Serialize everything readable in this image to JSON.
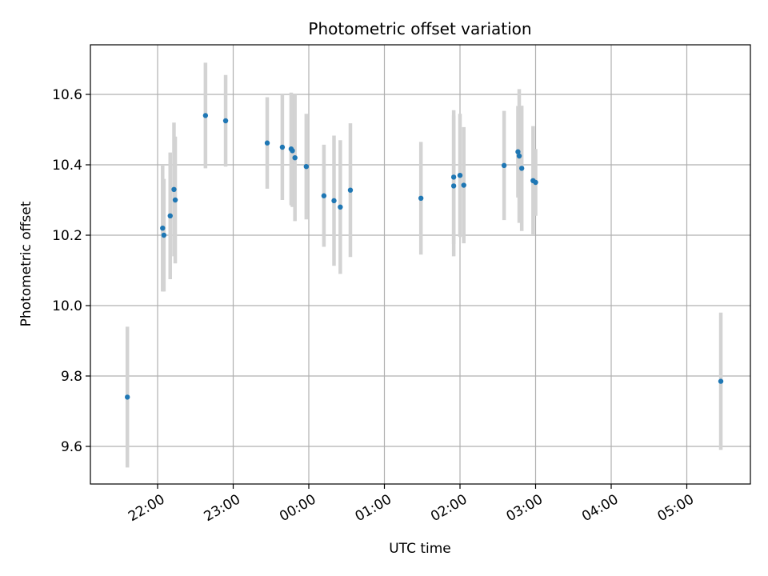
{
  "chart_data": {
    "type": "scatter",
    "title": "Photometric offset variation",
    "xlabel": "UTC time",
    "ylabel": "Photometric offset",
    "x_ticks": [
      "22:00",
      "23:00",
      "00:00",
      "01:00",
      "02:00",
      "03:00",
      "04:00",
      "05:00"
    ],
    "y_ticks": [
      "9.6",
      "9.8",
      "10.0",
      "10.2",
      "10.4",
      "10.6"
    ],
    "grid": true,
    "colors": {
      "point": "#1f77b4",
      "errorbar": "#d3d3d3",
      "grid": "#b0b0b0"
    },
    "points": [
      {
        "time": "21:36",
        "y": 9.74,
        "err": 0.2
      },
      {
        "time": "22:04",
        "y": 10.22,
        "err": 0.18
      },
      {
        "time": "22:05",
        "y": 10.2,
        "err": 0.16
      },
      {
        "time": "22:10",
        "y": 10.255,
        "err": 0.18
      },
      {
        "time": "22:13",
        "y": 10.33,
        "err": 0.19
      },
      {
        "time": "22:14",
        "y": 10.3,
        "err": 0.18
      },
      {
        "time": "22:38",
        "y": 10.54,
        "err": 0.15
      },
      {
        "time": "22:54",
        "y": 10.525,
        "err": 0.13
      },
      {
        "time": "23:27",
        "y": 10.462,
        "err": 0.13
      },
      {
        "time": "23:39",
        "y": 10.45,
        "err": 0.15
      },
      {
        "time": "23:46",
        "y": 10.445,
        "err": 0.16
      },
      {
        "time": "23:47",
        "y": 10.44,
        "err": 0.16
      },
      {
        "time": "23:49",
        "y": 10.42,
        "err": 0.18
      },
      {
        "time": "23:58",
        "y": 10.395,
        "err": 0.15
      },
      {
        "time": "00:12",
        "y": 10.312,
        "err": 0.145
      },
      {
        "time": "00:20",
        "y": 10.298,
        "err": 0.185
      },
      {
        "time": "00:25",
        "y": 10.28,
        "err": 0.19
      },
      {
        "time": "00:33",
        "y": 10.328,
        "err": 0.19
      },
      {
        "time": "01:29",
        "y": 10.305,
        "err": 0.16
      },
      {
        "time": "01:55",
        "y": 10.365,
        "err": 0.19
      },
      {
        "time": "01:55",
        "y": 10.34,
        "err": 0.2
      },
      {
        "time": "02:00",
        "y": 10.37,
        "err": 0.175
      },
      {
        "time": "02:03",
        "y": 10.342,
        "err": 0.165
      },
      {
        "time": "02:35",
        "y": 10.398,
        "err": 0.155
      },
      {
        "time": "02:46",
        "y": 10.437,
        "err": 0.13
      },
      {
        "time": "02:47",
        "y": 10.425,
        "err": 0.19
      },
      {
        "time": "02:49",
        "y": 10.39,
        "err": 0.178
      },
      {
        "time": "02:58",
        "y": 10.355,
        "err": 0.155
      },
      {
        "time": "03:00",
        "y": 10.35,
        "err": 0.095
      },
      {
        "time": "05:27",
        "y": 9.785,
        "err": 0.195
      }
    ]
  }
}
